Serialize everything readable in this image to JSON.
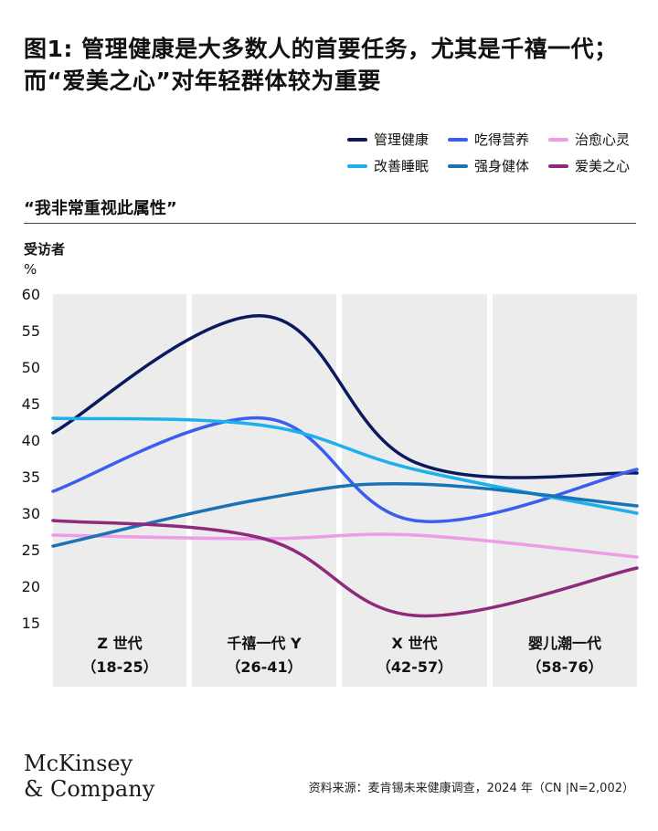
{
  "header": {
    "title": "图1: 管理健康是大多数人的首要任务，尤其是千禧一代；而“爱美之心”对年轻群体较为重要",
    "subtitle": "“我非常重视此属性”",
    "unit_line1": "受访者",
    "unit_line2": "%"
  },
  "legend": [
    {
      "label": "管理健康",
      "color": "#0b1a5e"
    },
    {
      "label": "吃得营养",
      "color": "#3b5ef0"
    },
    {
      "label": "治愈心灵",
      "color": "#ee9be8"
    },
    {
      "label": "改善睡眠",
      "color": "#1cb0ec"
    },
    {
      "label": "强身健体",
      "color": "#1a73b5"
    },
    {
      "label": "爱美之心",
      "color": "#8e2a7c"
    }
  ],
  "chart_data": {
    "type": "line",
    "categories": [
      {
        "name": "Z 世代",
        "range": "（18-25）"
      },
      {
        "name": "千禧一代 Y",
        "range": "（26-41）"
      },
      {
        "name": "X 世代",
        "range": "（42-57）"
      },
      {
        "name": "婴儿潮一代",
        "range": "（58-76）"
      }
    ],
    "ylim": [
      15,
      60
    ],
    "yticks": [
      15,
      20,
      25,
      30,
      35,
      40,
      45,
      50,
      55,
      60
    ],
    "series": [
      {
        "name": "管理健康",
        "color": "#0b1a5e",
        "values": [
          41,
          57,
          37,
          35.5
        ]
      },
      {
        "name": "吃得营养",
        "color": "#3b5ef0",
        "values": [
          33,
          43,
          29,
          36
        ]
      },
      {
        "name": "治愈心灵",
        "color": "#ee9be8",
        "values": [
          27,
          26.5,
          27,
          24
        ]
      },
      {
        "name": "改善睡眠",
        "color": "#1cb0ec",
        "values": [
          43,
          42,
          36,
          30
        ]
      },
      {
        "name": "强身健体",
        "color": "#1a73b5",
        "values": [
          25.5,
          32,
          34,
          31
        ]
      },
      {
        "name": "爱美之心",
        "color": "#8e2a7c",
        "values": [
          29,
          26.5,
          16,
          22.5
        ]
      }
    ]
  },
  "footer": {
    "logo_line1": "McKinsey",
    "logo_line2": "& Company",
    "source": "资料来源：麦肯锡未来健康调查，2024 年（CN |N=2,002）"
  }
}
